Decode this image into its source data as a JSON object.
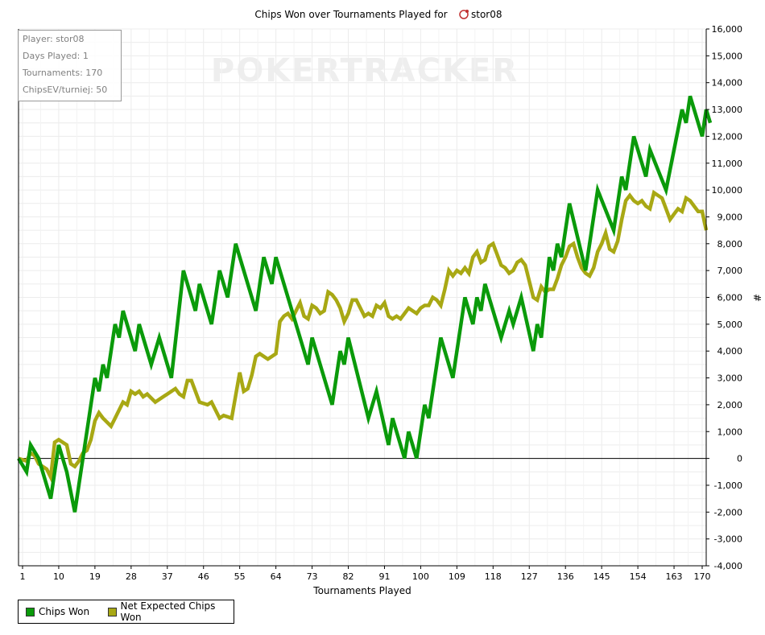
{
  "chart_data": {
    "type": "line",
    "title": "Chips Won over Tournaments Played for",
    "player_name": "stor08",
    "watermark": "POKERTRACKER",
    "xlabel": "Tournaments Played",
    "ylabel": "#",
    "xlim": [
      0,
      171
    ],
    "ylim": [
      -4000,
      16000
    ],
    "x_ticks": [
      1,
      10,
      19,
      28,
      37,
      46,
      55,
      64,
      73,
      82,
      91,
      100,
      109,
      118,
      127,
      136,
      145,
      154,
      163,
      170
    ],
    "y_ticks": [
      16000,
      15000,
      14000,
      13000,
      12000,
      11000,
      10000,
      9000,
      8000,
      7000,
      6000,
      5000,
      4000,
      3000,
      2000,
      1000,
      0,
      -1000,
      -2000,
      -3000,
      -4000
    ],
    "y_tick_labels": [
      "16,000",
      "15,000",
      "14,000",
      "13,000",
      "12,000",
      "11,000",
      "10,000",
      "9,000",
      "8,000",
      "7,000",
      "6,000",
      "5,000",
      "4,000",
      "3,000",
      "2,000",
      "1,000",
      "0",
      "-1,000",
      "-2,000",
      "-3,000",
      "-4,000"
    ],
    "grid": true,
    "legend_position": "bottom-left",
    "series": [
      {
        "name": "Chips Won",
        "color": "#0a9a0a",
        "points": [
          [
            0,
            0
          ],
          [
            2,
            -500
          ],
          [
            3,
            500
          ],
          [
            5,
            0
          ],
          [
            7,
            -1000
          ],
          [
            8,
            -1500
          ],
          [
            10,
            500
          ],
          [
            12,
            -500
          ],
          [
            14,
            -2000
          ],
          [
            19,
            3000
          ],
          [
            20,
            2500
          ],
          [
            21,
            3500
          ],
          [
            22,
            3000
          ],
          [
            24,
            5000
          ],
          [
            25,
            4500
          ],
          [
            26,
            5500
          ],
          [
            29,
            4000
          ],
          [
            30,
            5000
          ],
          [
            33,
            3500
          ],
          [
            34,
            4000
          ],
          [
            35,
            4500
          ],
          [
            38,
            3000
          ],
          [
            41,
            7000
          ],
          [
            44,
            5500
          ],
          [
            45,
            6500
          ],
          [
            48,
            5000
          ],
          [
            50,
            7000
          ],
          [
            52,
            6000
          ],
          [
            54,
            8000
          ],
          [
            59,
            5500
          ],
          [
            61,
            7500
          ],
          [
            63,
            6500
          ],
          [
            64,
            7500
          ],
          [
            72,
            3500
          ],
          [
            73,
            4500
          ],
          [
            78,
            2000
          ],
          [
            80,
            4000
          ],
          [
            81,
            3500
          ],
          [
            82,
            4500
          ],
          [
            87,
            1500
          ],
          [
            89,
            2500
          ],
          [
            92,
            500
          ],
          [
            93,
            1500
          ],
          [
            96,
            0
          ],
          [
            97,
            1000
          ],
          [
            99,
            0
          ],
          [
            101,
            2000
          ],
          [
            102,
            1500
          ],
          [
            105,
            4500
          ],
          [
            108,
            3000
          ],
          [
            111,
            6000
          ],
          [
            113,
            5000
          ],
          [
            114,
            6000
          ],
          [
            115,
            5500
          ],
          [
            116,
            6500
          ],
          [
            120,
            4500
          ],
          [
            122,
            5500
          ],
          [
            123,
            5000
          ],
          [
            125,
            6000
          ],
          [
            128,
            4000
          ],
          [
            129,
            5000
          ],
          [
            130,
            4500
          ],
          [
            132,
            7500
          ],
          [
            133,
            7000
          ],
          [
            134,
            8000
          ],
          [
            135,
            7500
          ],
          [
            137,
            9500
          ],
          [
            141,
            7000
          ],
          [
            144,
            10000
          ],
          [
            148,
            8500
          ],
          [
            150,
            10500
          ],
          [
            151,
            10000
          ],
          [
            153,
            12000
          ],
          [
            156,
            10500
          ],
          [
            157,
            11500
          ],
          [
            161,
            10000
          ],
          [
            165,
            13000
          ],
          [
            166,
            12500
          ],
          [
            167,
            13500
          ],
          [
            170,
            12000
          ],
          [
            171,
            13000
          ],
          [
            172,
            12500
          ]
        ]
      },
      {
        "name": "Net Expected Chips Won",
        "color": "#a8a814",
        "points": [
          [
            0,
            0
          ],
          [
            2,
            -100
          ],
          [
            3,
            200
          ],
          [
            4,
            100
          ],
          [
            5,
            -200
          ],
          [
            6,
            -300
          ],
          [
            7,
            -400
          ],
          [
            8,
            -700
          ],
          [
            9,
            600
          ],
          [
            10,
            700
          ],
          [
            11,
            600
          ],
          [
            12,
            500
          ],
          [
            13,
            -200
          ],
          [
            14,
            -300
          ],
          [
            15,
            -100
          ],
          [
            16,
            200
          ],
          [
            17,
            300
          ],
          [
            18,
            700
          ],
          [
            19,
            1400
          ],
          [
            20,
            1700
          ],
          [
            21,
            1500
          ],
          [
            23,
            1200
          ],
          [
            24,
            1500
          ],
          [
            26,
            2100
          ],
          [
            27,
            2000
          ],
          [
            28,
            2500
          ],
          [
            29,
            2400
          ],
          [
            30,
            2500
          ],
          [
            31,
            2300
          ],
          [
            32,
            2400
          ],
          [
            34,
            2100
          ],
          [
            36,
            2300
          ],
          [
            37,
            2400
          ],
          [
            39,
            2600
          ],
          [
            40,
            2400
          ],
          [
            41,
            2300
          ],
          [
            42,
            2900
          ],
          [
            43,
            2900
          ],
          [
            45,
            2100
          ],
          [
            47,
            2000
          ],
          [
            48,
            2100
          ],
          [
            49,
            1800
          ],
          [
            50,
            1500
          ],
          [
            51,
            1600
          ],
          [
            53,
            1500
          ],
          [
            55,
            3200
          ],
          [
            56,
            2500
          ],
          [
            57,
            2600
          ],
          [
            58,
            3100
          ],
          [
            59,
            3800
          ],
          [
            60,
            3900
          ],
          [
            61,
            3800
          ],
          [
            62,
            3700
          ],
          [
            63,
            3800
          ],
          [
            64,
            3900
          ],
          [
            65,
            5100
          ],
          [
            66,
            5300
          ],
          [
            67,
            5400
          ],
          [
            68,
            5200
          ],
          [
            69,
            5500
          ],
          [
            70,
            5800
          ],
          [
            71,
            5300
          ],
          [
            72,
            5200
          ],
          [
            73,
            5700
          ],
          [
            74,
            5600
          ],
          [
            75,
            5400
          ],
          [
            76,
            5500
          ],
          [
            77,
            6200
          ],
          [
            78,
            6100
          ],
          [
            79,
            5900
          ],
          [
            80,
            5600
          ],
          [
            81,
            5100
          ],
          [
            82,
            5400
          ],
          [
            83,
            5900
          ],
          [
            84,
            5900
          ],
          [
            85,
            5600
          ],
          [
            86,
            5300
          ],
          [
            87,
            5400
          ],
          [
            88,
            5300
          ],
          [
            89,
            5700
          ],
          [
            90,
            5600
          ],
          [
            91,
            5800
          ],
          [
            92,
            5300
          ],
          [
            93,
            5200
          ],
          [
            94,
            5300
          ],
          [
            95,
            5200
          ],
          [
            96,
            5400
          ],
          [
            97,
            5600
          ],
          [
            98,
            5500
          ],
          [
            99,
            5400
          ],
          [
            100,
            5600
          ],
          [
            101,
            5700
          ],
          [
            102,
            5700
          ],
          [
            103,
            6000
          ],
          [
            104,
            5900
          ],
          [
            105,
            5700
          ],
          [
            106,
            6300
          ],
          [
            107,
            7000
          ],
          [
            108,
            6800
          ],
          [
            109,
            7000
          ],
          [
            110,
            6900
          ],
          [
            111,
            7100
          ],
          [
            112,
            6900
          ],
          [
            113,
            7500
          ],
          [
            114,
            7700
          ],
          [
            115,
            7300
          ],
          [
            116,
            7400
          ],
          [
            117,
            7900
          ],
          [
            118,
            8000
          ],
          [
            119,
            7600
          ],
          [
            120,
            7200
          ],
          [
            121,
            7100
          ],
          [
            122,
            6900
          ],
          [
            123,
            7000
          ],
          [
            124,
            7300
          ],
          [
            125,
            7400
          ],
          [
            126,
            7200
          ],
          [
            127,
            6600
          ],
          [
            128,
            6000
          ],
          [
            129,
            5900
          ],
          [
            130,
            6400
          ],
          [
            131,
            6200
          ],
          [
            132,
            6300
          ],
          [
            133,
            6300
          ],
          [
            134,
            6700
          ],
          [
            135,
            7200
          ],
          [
            136,
            7500
          ],
          [
            137,
            7900
          ],
          [
            138,
            8000
          ],
          [
            139,
            7500
          ],
          [
            140,
            7100
          ],
          [
            141,
            6900
          ],
          [
            142,
            6800
          ],
          [
            143,
            7100
          ],
          [
            144,
            7700
          ],
          [
            145,
            8000
          ],
          [
            146,
            8400
          ],
          [
            147,
            7800
          ],
          [
            148,
            7700
          ],
          [
            149,
            8100
          ],
          [
            150,
            8900
          ],
          [
            151,
            9600
          ],
          [
            152,
            9800
          ],
          [
            153,
            9600
          ],
          [
            154,
            9500
          ],
          [
            155,
            9600
          ],
          [
            156,
            9400
          ],
          [
            157,
            9300
          ],
          [
            158,
            9900
          ],
          [
            159,
            9800
          ],
          [
            160,
            9700
          ],
          [
            161,
            9300
          ],
          [
            162,
            8900
          ],
          [
            163,
            9100
          ],
          [
            164,
            9300
          ],
          [
            165,
            9200
          ],
          [
            166,
            9700
          ],
          [
            167,
            9600
          ],
          [
            168,
            9400
          ],
          [
            169,
            9200
          ],
          [
            170,
            9200
          ],
          [
            171,
            8500
          ]
        ]
      }
    ]
  },
  "info_box": {
    "player": "Player: stor08",
    "days": "Days Played: 1",
    "tournaments": "Tournaments: 170",
    "chips_ev": "ChipsEV/turniej: 50"
  },
  "legend": {
    "items": [
      "Chips Won",
      "Net Expected Chips Won"
    ]
  }
}
